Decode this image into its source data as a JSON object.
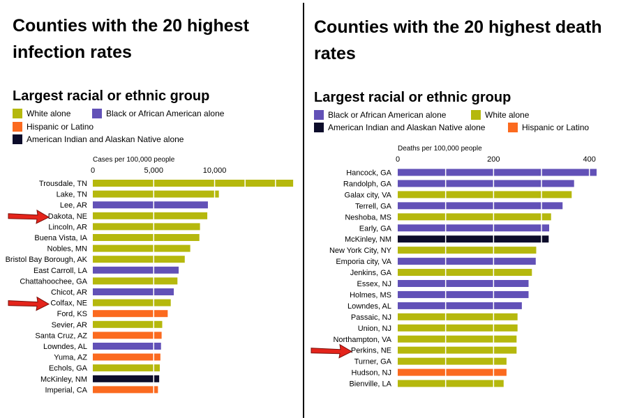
{
  "colors": {
    "White alone": "#b5b80d",
    "Black or African American alone": "#6251b7",
    "Hispanic or Latino": "#fb6a1f",
    "American Indian and Alaskan Native alone": "#0c0c2a",
    "arrow": "#e4241b"
  },
  "icons": {
    "arrow": "red-arrow-icon"
  },
  "chart_data": [
    {
      "type": "bar",
      "orientation": "horizontal",
      "title": "Counties with the 20 highest infection rates",
      "legend_title": "Largest racial or ethnic group",
      "legend": [
        "White alone",
        "Black or African American alone",
        "Hispanic or Latino",
        "American Indian and Alaskan Native alone"
      ],
      "xlabel": "Cases per 100,000 people",
      "xticks": [
        0,
        5000,
        10000
      ],
      "xtick_labels": [
        "0",
        "5,000",
        "10,000"
      ],
      "xlim": [
        0,
        16500
      ],
      "grid": true,
      "categories": [
        "Trousdale, TN",
        "Lake, TN",
        "Lee, AR",
        "Dakota, NE",
        "Lincoln, AR",
        "Buena Vista, IA",
        "Nobles, MN",
        "Bristol Bay Borough, AK",
        "East Carroll, LA",
        "Chattahoochee, GA",
        "Chicot, AR",
        "Colfax, NE",
        "Ford, KS",
        "Sevier, AR",
        "Santa Cruz, AZ",
        "Lowndes, AL",
        "Yuma, AZ",
        "Echols, GA",
        "McKinley, NM",
        "Imperial, CA"
      ],
      "values": [
        16450,
        10350,
        9450,
        9400,
        8800,
        8750,
        8000,
        7550,
        7050,
        6950,
        6650,
        6400,
        6150,
        5700,
        5650,
        5600,
        5550,
        5500,
        5450,
        5350
      ],
      "groups": [
        "White alone",
        "White alone",
        "Black or African American alone",
        "White alone",
        "White alone",
        "White alone",
        "White alone",
        "White alone",
        "Black or African American alone",
        "White alone",
        "Black or African American alone",
        "White alone",
        "Hispanic or Latino",
        "White alone",
        "Hispanic or Latino",
        "Black or African American alone",
        "Hispanic or Latino",
        "White alone",
        "American Indian and Alaskan Native alone",
        "Hispanic or Latino"
      ],
      "highlighted": [
        "Dakota, NE",
        "Colfax, NE"
      ]
    },
    {
      "type": "bar",
      "orientation": "horizontal",
      "title": "Counties with the 20 highest death rates",
      "legend_title": "Largest racial or ethnic group",
      "legend": [
        "Black or African American alone",
        "White alone",
        "American Indian and Alaskan Native alone",
        "Hispanic or Latino"
      ],
      "xlabel": "Deaths per 100,000 people",
      "xticks": [
        0,
        200,
        400
      ],
      "xtick_labels": [
        "0",
        "200",
        "400"
      ],
      "xlim": [
        0,
        415
      ],
      "grid": true,
      "categories": [
        "Hancock, GA",
        "Randolph, GA",
        "Galax city, VA",
        "Terrell, GA",
        "Neshoba, MS",
        "Early, GA",
        "McKinley, NM",
        "New York City, NY",
        "Emporia city, VA",
        "Jenkins, GA",
        "Essex, NJ",
        "Holmes, MS",
        "Lowndes, AL",
        "Passaic, NJ",
        "Union, NJ",
        "Northampton, VA",
        "Perkins, NE",
        "Turner, GA",
        "Hudson, NJ",
        "Bienville, LA"
      ],
      "values": [
        415,
        368,
        363,
        344,
        320,
        316,
        315,
        289,
        288,
        280,
        273,
        273,
        259,
        250,
        250,
        248,
        248,
        227,
        227,
        221
      ],
      "groups": [
        "Black or African American alone",
        "Black or African American alone",
        "White alone",
        "Black or African American alone",
        "White alone",
        "Black or African American alone",
        "American Indian and Alaskan Native alone",
        "White alone",
        "Black or African American alone",
        "White alone",
        "Black or African American alone",
        "Black or African American alone",
        "Black or African American alone",
        "White alone",
        "White alone",
        "White alone",
        "White alone",
        "White alone",
        "Hispanic or Latino",
        "White alone"
      ],
      "highlighted": [
        "Perkins, NE"
      ]
    }
  ]
}
